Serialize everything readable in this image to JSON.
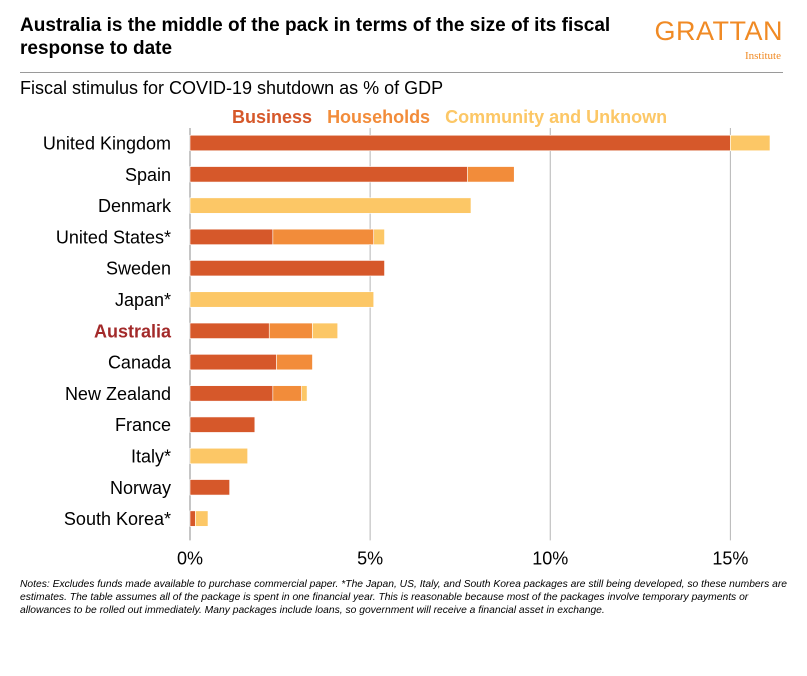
{
  "header": {
    "title": "Australia is the middle of the pack in terms of the size of its fiscal response to date",
    "logo_main": "GRATTAN",
    "logo_sub": "Institute",
    "subtitle": "Fiscal stimulus for COVID-19 shutdown as % of GDP"
  },
  "colors": {
    "business": "#d6582a",
    "households": "#f28c3a",
    "community": "#fcc766",
    "highlight": "#a32a2a",
    "logo": "#f08a24",
    "grid": "#b5b5b5"
  },
  "chart_data": {
    "type": "bar",
    "orientation": "horizontal",
    "stacked": true,
    "title": "Fiscal stimulus for COVID-19 shutdown as % of GDP",
    "xlabel": "",
    "ylabel": "",
    "xlim": [
      0,
      16
    ],
    "xticks": [
      0,
      5,
      10,
      15
    ],
    "xtick_labels": [
      "0%",
      "5%",
      "10%",
      "15%"
    ],
    "grid": true,
    "legend_position": "top",
    "highlight_category": "Australia",
    "categories": [
      "United Kingdom",
      "Spain",
      "Denmark",
      "United States*",
      "Sweden",
      "Japan*",
      "Australia",
      "Canada",
      "New Zealand",
      "France",
      "Italy*",
      "Norway",
      "South Korea*"
    ],
    "series": [
      {
        "name": "Business",
        "color": "#d6582a",
        "values": [
          15.0,
          7.7,
          0,
          2.3,
          5.4,
          0,
          2.2,
          2.4,
          2.3,
          1.8,
          0,
          1.1,
          0.15
        ]
      },
      {
        "name": "Households",
        "color": "#f28c3a",
        "values": [
          0,
          1.3,
          0,
          2.8,
          0,
          0,
          1.2,
          1.0,
          0.8,
          0,
          0,
          0,
          0
        ]
      },
      {
        "name": "Community and Unknown",
        "color": "#fcc766",
        "values": [
          1.1,
          0,
          7.8,
          0.3,
          0,
          5.1,
          0.7,
          0,
          0.15,
          0,
          1.6,
          0,
          0.35
        ]
      }
    ]
  },
  "notes": "Notes: Excludes funds made available to purchase commercial paper. *The Japan, US, Italy, and South Korea packages are still being developed, so these numbers are estimates. The table assumes all of the package is spent in one financial year. This is reasonable because most of the packages involve temporary payments or allowances to be rolled out immediately. Many packages include loans, so government will receive a financial asset in exchange."
}
